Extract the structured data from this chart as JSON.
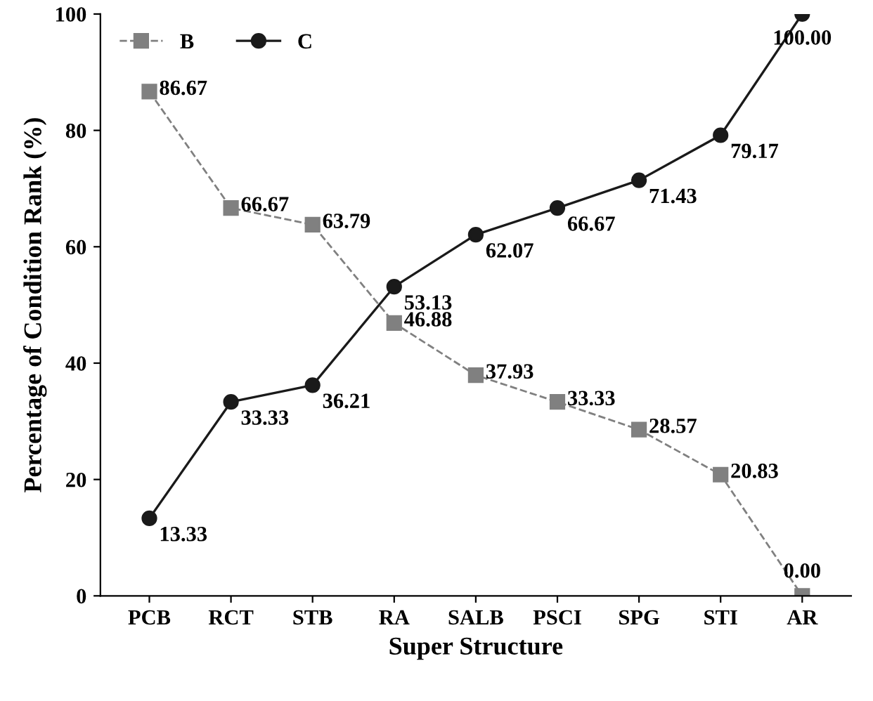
{
  "chart_data": {
    "type": "line",
    "xlabel": "Super Structure",
    "ylabel": "Percentage of Condition Rank (%)",
    "categories": [
      "PCB",
      "RCT",
      "STB",
      "RA",
      "SALB",
      "PSCI",
      "SPG",
      "STI",
      "AR"
    ],
    "series": [
      {
        "name": "B",
        "color": "#808080",
        "marker": "square",
        "line_style": "dashed",
        "values": [
          86.67,
          66.67,
          63.79,
          46.88,
          37.93,
          33.33,
          28.57,
          20.83,
          0.0
        ],
        "value_labels": [
          "86.67",
          "66.67",
          "63.79",
          "46.88",
          "37.93",
          "33.33",
          "28.57",
          "20.83",
          "0.00"
        ]
      },
      {
        "name": "C",
        "color": "#1a1a1a",
        "marker": "circle",
        "line_style": "solid",
        "values": [
          13.33,
          33.33,
          36.21,
          53.13,
          62.07,
          66.67,
          71.43,
          79.17,
          100.0
        ],
        "value_labels": [
          "13.33",
          "33.33",
          "36.21",
          "53.13",
          "62.07",
          "66.67",
          "71.43",
          "79.17",
          "100.00"
        ]
      }
    ],
    "ylim": [
      0,
      100
    ],
    "yticks": [
      0,
      20,
      40,
      60,
      80,
      100
    ],
    "grid": false,
    "legend": "top left"
  }
}
